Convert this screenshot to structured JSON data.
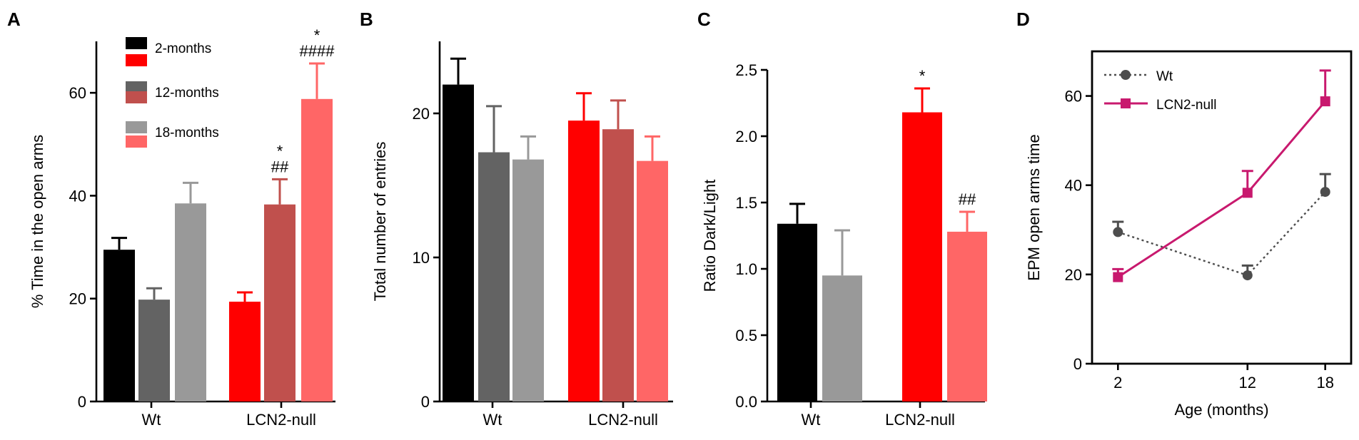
{
  "chart_data": [
    {
      "panel": "A",
      "type": "bar",
      "ylabel": "% Time in the open arms",
      "ylim": [
        0,
        70
      ],
      "yticks": [
        0,
        20,
        40,
        60
      ],
      "groups": [
        "Wt",
        "LCN2-null"
      ],
      "legend": [
        {
          "label": "2-months",
          "colors": [
            "#000000",
            "#ff0000"
          ]
        },
        {
          "label": "12-months",
          "colors": [
            "#636363",
            "#c0504d"
          ]
        },
        {
          "label": "18-months",
          "colors": [
            "#999999",
            "#ff6666"
          ]
        }
      ],
      "bars": [
        {
          "group": "Wt",
          "series": "2-months",
          "value": 29.5,
          "error": 2.3,
          "color": "#000000",
          "annotation": ""
        },
        {
          "group": "Wt",
          "series": "12-months",
          "value": 19.8,
          "error": 2.2,
          "color": "#636363",
          "annotation": ""
        },
        {
          "group": "Wt",
          "series": "18-months",
          "value": 38.5,
          "error": 4.0,
          "color": "#999999",
          "annotation": ""
        },
        {
          "group": "LCN2-null",
          "series": "2-months",
          "value": 19.4,
          "error": 1.8,
          "color": "#ff0000",
          "annotation": ""
        },
        {
          "group": "LCN2-null",
          "series": "12-months",
          "value": 38.3,
          "error": 4.9,
          "color": "#c0504d",
          "annotation": "##",
          "annotation2": "*"
        },
        {
          "group": "LCN2-null",
          "series": "18-months",
          "value": 58.8,
          "error": 6.9,
          "color": "#ff6666",
          "annotation": "####",
          "annotation2": "*"
        }
      ]
    },
    {
      "panel": "B",
      "type": "bar",
      "ylabel": "Total number of entries",
      "ylim": [
        0,
        25
      ],
      "yticks": [
        0,
        10,
        20
      ],
      "groups": [
        "Wt",
        "LCN2-null"
      ],
      "bars": [
        {
          "group": "Wt",
          "series": "2-months",
          "value": 22.0,
          "error": 1.8,
          "color": "#000000"
        },
        {
          "group": "Wt",
          "series": "12-months",
          "value": 17.3,
          "error": 3.2,
          "color": "#636363"
        },
        {
          "group": "Wt",
          "series": "18-months",
          "value": 16.8,
          "error": 1.6,
          "color": "#999999"
        },
        {
          "group": "LCN2-null",
          "series": "2-months",
          "value": 19.5,
          "error": 1.9,
          "color": "#ff0000"
        },
        {
          "group": "LCN2-null",
          "series": "12-months",
          "value": 18.9,
          "error": 2.0,
          "color": "#c0504d"
        },
        {
          "group": "LCN2-null",
          "series": "18-months",
          "value": 16.7,
          "error": 1.7,
          "color": "#ff6666"
        }
      ]
    },
    {
      "panel": "C",
      "type": "bar",
      "ylabel": "Ratio Dark/Light",
      "ylim": [
        0,
        2.5
      ],
      "yticks": [
        "0.0",
        "0.5",
        "1.0",
        "1.5",
        "2.0",
        "2.5"
      ],
      "groups": [
        "Wt",
        "LCN2-null"
      ],
      "bars": [
        {
          "group": "Wt",
          "series": "2-months",
          "value": 1.34,
          "error": 0.15,
          "color": "#000000",
          "annotation": ""
        },
        {
          "group": "Wt",
          "series": "18-months",
          "value": 0.95,
          "error": 0.34,
          "color": "#999999",
          "annotation": ""
        },
        {
          "group": "LCN2-null",
          "series": "2-months",
          "value": 2.18,
          "error": 0.18,
          "color": "#ff0000",
          "annotation": "*"
        },
        {
          "group": "LCN2-null",
          "series": "18-months",
          "value": 1.28,
          "error": 0.15,
          "color": "#ff6666",
          "annotation": "##"
        }
      ]
    },
    {
      "panel": "D",
      "type": "line",
      "xlabel": "Age (months)",
      "ylabel": "EPM open arms time",
      "xlim": [
        0,
        20
      ],
      "ylim": [
        0,
        70
      ],
      "x": [
        2,
        12,
        18
      ],
      "xticks": [
        2,
        12,
        18
      ],
      "yticks": [
        0,
        20,
        40,
        60
      ],
      "series": [
        {
          "name": "Wt",
          "values": [
            29.5,
            19.8,
            38.5
          ],
          "errors": [
            2.3,
            2.2,
            4.0
          ],
          "color": "#4d4d4d",
          "marker": "circle",
          "dash": true
        },
        {
          "name": "LCN2-null",
          "values": [
            19.4,
            38.3,
            58.8
          ],
          "errors": [
            1.8,
            4.9,
            6.9
          ],
          "color": "#c8196e",
          "marker": "square",
          "dash": false
        }
      ]
    }
  ]
}
